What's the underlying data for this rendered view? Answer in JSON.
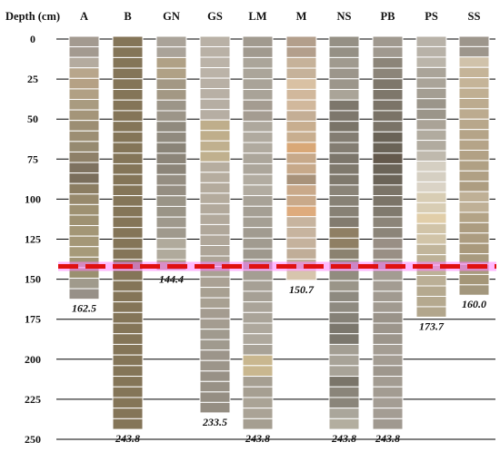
{
  "chart_data": {
    "type": "bar",
    "title": "",
    "ylabel": "Depth (cm)",
    "xlabel": "",
    "ylim": [
      0,
      250
    ],
    "yticks": [
      0,
      25,
      50,
      75,
      100,
      125,
      150,
      175,
      200,
      225,
      250
    ],
    "grid": true,
    "reference_line": {
      "value": 142,
      "color": "#e01010",
      "glow": "#ff80ff"
    },
    "categories": [
      "A",
      "B",
      "GN",
      "GS",
      "LM",
      "M",
      "NS",
      "PB",
      "PS",
      "SS"
    ],
    "values": [
      162.5,
      243.8,
      144.4,
      233.5,
      243.8,
      150.7,
      243.8,
      243.8,
      173.7,
      160.0
    ],
    "value_labels": [
      "162.5",
      "243.8",
      "144.4",
      "233.5",
      "243.8",
      "150.7",
      "243.8",
      "243.8",
      "173.7",
      "160.0"
    ],
    "colors": {
      "A": [
        "#a39a90",
        "#b4ab9f",
        "#b8a68c",
        "#b5a185",
        "#b1a084",
        "#a99b80",
        "#a49579",
        "#9c8e73",
        "#968a70",
        "#8e8068",
        "#7e7260",
        "#7a6e5c",
        "#8b7d62",
        "#97896c",
        "#9e9172",
        "#a39676",
        "#a49777",
        "#a69a79",
        "#a09474",
        "#9a9070",
        "#a09a8c",
        "#979088"
      ],
      "B": [
        "#847558"
      ],
      "GN": [
        "#aaa399",
        "#b0a186",
        "#a39884",
        "#9c9588",
        "#908a7e",
        "#8a8478",
        "#8c8579",
        "#958e82",
        "#9a9487",
        "#9f998d",
        "#b0aa9c",
        "#aa9e82"
      ],
      "GS": [
        "#b9b1a6",
        "#bbb3a8",
        "#b8b0a5",
        "#b6aea3",
        "#bfae8b",
        "#c0b08e",
        "#b6ad9f",
        "#b4ab9d",
        "#b2a99c",
        "#b0a79a",
        "#aea598",
        "#aaa194",
        "#a8a092",
        "#a49c90",
        "#a09a8e",
        "#9c958a",
        "#989186",
        "#958e83"
      ],
      "LM": [
        "#a19a8f",
        "#aba59a",
        "#a9a398",
        "#a49c91",
        "#aea89d",
        "#b0aa9f",
        "#aca69b",
        "#b2aca1",
        "#a8a297",
        "#a59f94",
        "#a19b90",
        "#9e988d",
        "#a49e93",
        "#a6a095",
        "#aaa499",
        "#aea89d",
        "#a8a297",
        "#c9b78f",
        "#a69f92",
        "#aaa396",
        "#a59e91"
      ],
      "M": [
        "#b39f8c",
        "#c6b29a",
        "#d9c1a3",
        "#d1b89c",
        "#c4ae95",
        "#c8ae8f",
        "#d9a877",
        "#c7a98a",
        "#a8927a",
        "#c9a98a",
        "#deab7d",
        "#c7b49f",
        "#c5b29d",
        "#c0ad98",
        "#d7c5ad"
      ],
      "NS": [
        "#959085",
        "#a09a8f",
        "#9c968b",
        "#aaa498",
        "#7d776c",
        "#7a7468",
        "#837d72",
        "#7c766b",
        "#7f796d",
        "#8a8478",
        "#878175",
        "#827b6f",
        "#8f7f64",
        "#8b8270",
        "#918c7f",
        "#9a9588",
        "#8e8a80",
        "#858177",
        "#7b776d",
        "#a39e93",
        "#a8a398",
        "#7a756a",
        "#8a857a",
        "#aaa69b",
        "#b3ae9f"
      ],
      "PB": [
        "#a0998f",
        "#8c8579",
        "#7e776b",
        "#7b7468",
        "#7a7367",
        "#6a6357",
        "#64594c",
        "#6b6458",
        "#7b7468",
        "#807a6e",
        "#8c8579",
        "#998f85",
        "#999288",
        "#a39c92",
        "#a19a90",
        "#9a9389",
        "#9c958b",
        "#a49d93",
        "#9e978d",
        "#a39c92",
        "#a49d94",
        "#a09990"
      ],
      "PS": [
        "#b8b2a8",
        "#bbb5aa",
        "#aaa499",
        "#a49e93",
        "#9b958a",
        "#aaa397",
        "#b1ab9f",
        "#bfb9ad",
        "#d5cfc2",
        "#dad3c6",
        "#d8cdb4",
        "#e1cea9",
        "#d1c4a8",
        "#c1b59b",
        "#bdb197",
        "#bbaf96",
        "#b5a98f",
        "#b2a68c"
      ],
      "SS": [
        "#9d968c",
        "#d0c2aa",
        "#c5b498",
        "#c0af92",
        "#bcab8f",
        "#b8a78b",
        "#b5a488",
        "#b2a185",
        "#b0a084",
        "#ad9d81",
        "#bfb096",
        "#b3a386",
        "#ac9c80",
        "#a9997c",
        "#a89a7e",
        "#a49678",
        "#a3977d"
      ]
    }
  }
}
